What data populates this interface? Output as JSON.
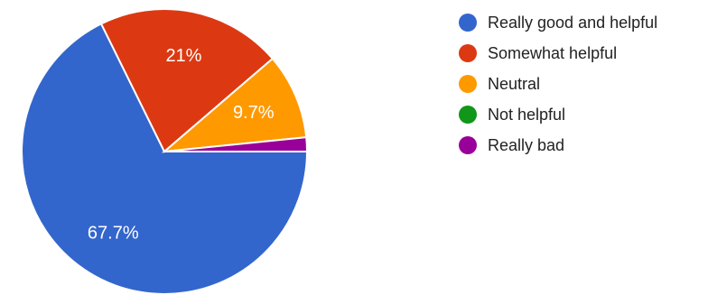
{
  "chart_data": {
    "type": "pie",
    "slices": [
      {
        "label": "Really good and helpful",
        "value": 67.7,
        "display": "67.7%",
        "color": "#3366cc"
      },
      {
        "label": "Somewhat helpful",
        "value": 21.0,
        "display": "21%",
        "color": "#dc3912"
      },
      {
        "label": "Neutral",
        "value": 9.7,
        "display": "9.7%",
        "color": "#ff9900"
      },
      {
        "label": "Not helpful",
        "value": 0.0,
        "display": "",
        "color": "#109618"
      },
      {
        "label": "Really bad",
        "value": 1.6,
        "display": "",
        "color": "#990099"
      }
    ],
    "legend_position": "right"
  }
}
